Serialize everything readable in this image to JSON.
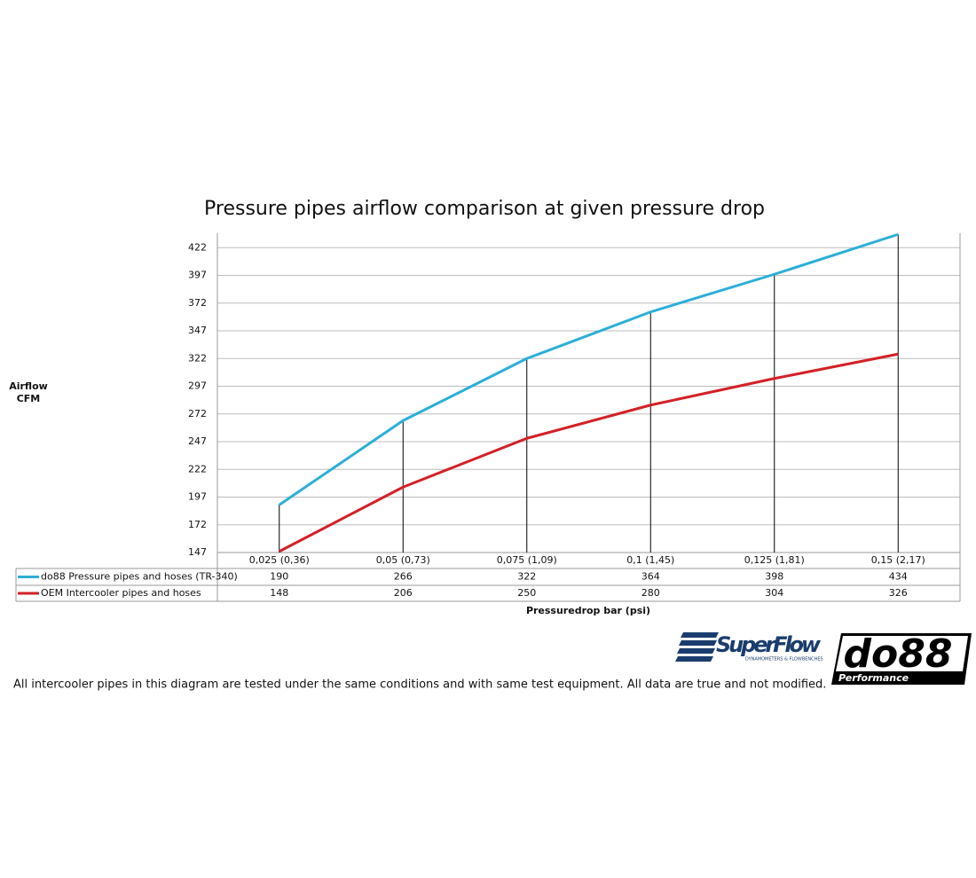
{
  "chart_data": {
    "type": "line",
    "title": "Pressure pipes airflow comparison at given pressure drop",
    "y_label": [
      "Airflow",
      "CFM"
    ],
    "x_label": "Pressuredrop bar (psi)",
    "categories": [
      "0,025 (0,36)",
      "0,05 (0,73)",
      "0,075 (1,09)",
      "0,1 (1,45)",
      "0,125 (1,81)",
      "0,15 (2,17)"
    ],
    "series": [
      {
        "name": "do88 Pressure pipes and hoses (TR-340)",
        "color": "#2bafd8",
        "values": [
          190,
          266,
          322,
          364,
          398,
          434
        ]
      },
      {
        "name": "OEM Intercooler pipes and hoses",
        "color": "#d42027",
        "values": [
          148,
          206,
          250,
          280,
          304,
          326
        ]
      }
    ],
    "ylim": [
      147,
      435
    ],
    "yticks": [
      147,
      172,
      197,
      222,
      247,
      272,
      297,
      322,
      347,
      372,
      397,
      422
    ],
    "grid": true,
    "drop_lines": true
  },
  "footnote": "All intercooler pipes in this diagram are tested under the same conditions and with same test equipment. All data are true and not modified.",
  "logos": {
    "superflow": "SuperFlow",
    "superflow_sub": "DYNAMOMETERS & FLOWBENCHES",
    "do88": "do88",
    "do88_sub": "Performance"
  }
}
